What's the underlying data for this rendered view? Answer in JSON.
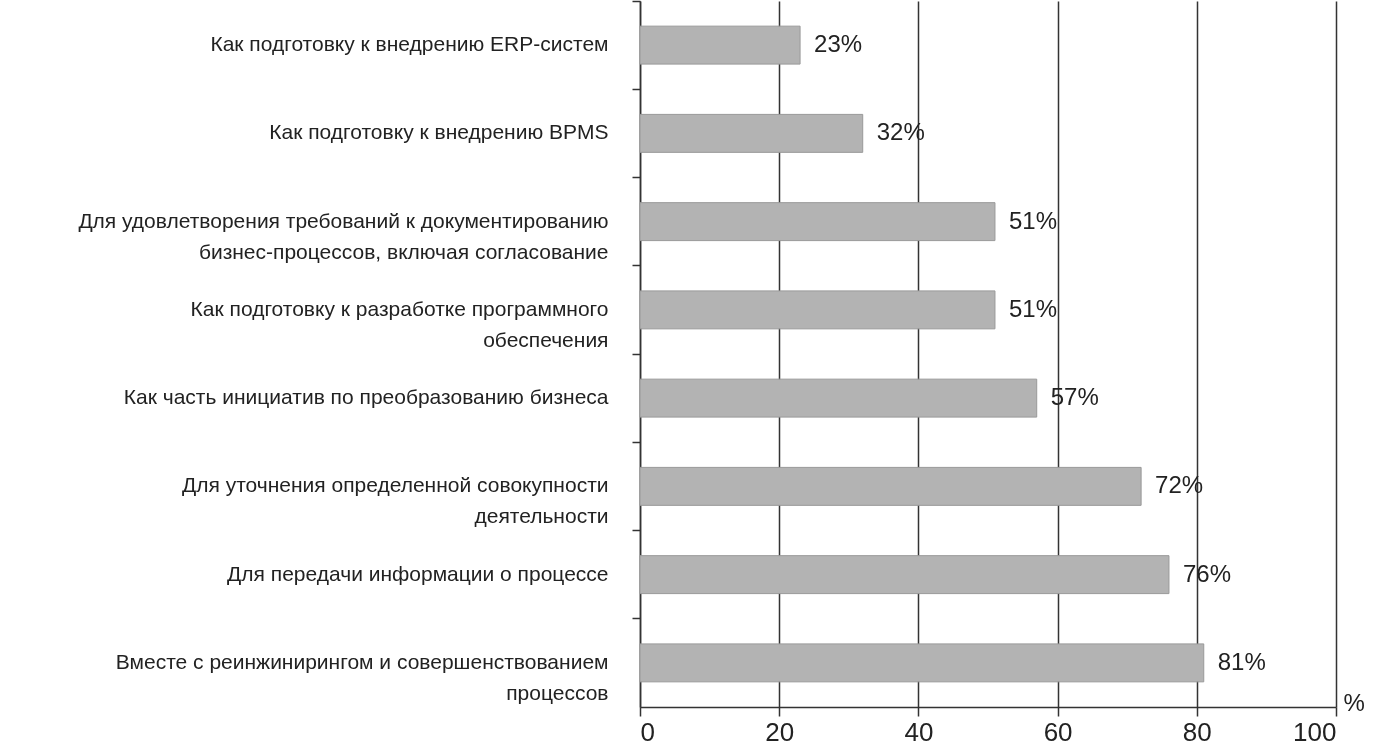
{
  "chart_data": {
    "type": "bar",
    "orientation": "horizontal",
    "categories": [
      "Как подготовку к внедрению ERP-систем",
      "Как подготовку к внедрению BPMS",
      "Для удовлетворения требований к документированию бизнес-процессов, включая согласование",
      "Как подготовку к разработке программного обеспечения",
      "Как часть инициатив по преобразованию бизнеса",
      "Для уточнения определенной совокупности деятельности",
      "Для передачи информации о процессе",
      "Вместе с реинжинирингом и совершенствованием процессов"
    ],
    "values": [
      23,
      32,
      51,
      51,
      57,
      72,
      76,
      81
    ],
    "value_labels": [
      "23%",
      "32%",
      "51%",
      "51%",
      "57%",
      "72%",
      "76%",
      "81%"
    ],
    "color": "#b3b3b3",
    "xlabel": "%",
    "xlim": [
      0,
      100
    ],
    "xticks": [
      0,
      20,
      40,
      60,
      80,
      100
    ],
    "grid": "x"
  }
}
